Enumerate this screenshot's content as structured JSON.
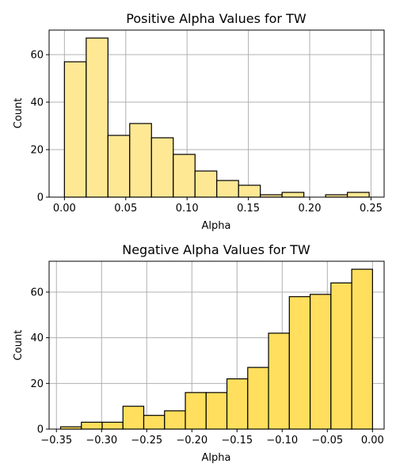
{
  "chart_data": [
    {
      "type": "bar",
      "title": "Positive Alpha Values for TW",
      "xlabel": "Alpha",
      "ylabel": "Count",
      "bar_color": "#ffe894",
      "grid": true,
      "xlim": [
        -0.0125,
        0.2607
      ],
      "ylim": [
        0,
        70.35
      ],
      "x_ticks": [
        0.0,
        0.05,
        0.1,
        0.15,
        0.2,
        0.25
      ],
      "x_tick_labels": [
        "0.00",
        "0.05",
        "0.10",
        "0.15",
        "0.20",
        "0.25"
      ],
      "y_ticks": [
        0,
        20,
        40,
        60
      ],
      "y_tick_labels": [
        "0",
        "20",
        "40",
        "60"
      ],
      "bin_width": 0.01775,
      "bin_edges": [
        0.0,
        0.01775,
        0.0355,
        0.05325,
        0.071,
        0.08875,
        0.1065,
        0.12425,
        0.142,
        0.15975,
        0.1775,
        0.19525,
        0.213,
        0.23075
      ],
      "values": [
        57,
        67,
        26,
        31,
        25,
        18,
        11,
        7,
        5,
        1,
        2,
        0,
        1,
        2
      ]
    },
    {
      "type": "bar",
      "title": "Negative Alpha Values for TW",
      "xlabel": "Alpha",
      "ylabel": "Count",
      "bar_color": "#ffdf5d",
      "grid": true,
      "xlim": [
        -0.3581,
        0.0129
      ],
      "ylim": [
        0,
        73.5
      ],
      "x_ticks": [
        -0.35,
        -0.3,
        -0.25,
        -0.2,
        -0.15,
        -0.1,
        -0.05,
        0.0
      ],
      "x_tick_labels": [
        "−0.35",
        "−0.30",
        "−0.25",
        "−0.20",
        "−0.15",
        "−0.10",
        "−0.05",
        "0.00"
      ],
      "y_ticks": [
        0,
        20,
        40,
        60
      ],
      "y_tick_labels": [
        "0",
        "20",
        "40",
        "60"
      ],
      "bin_width": 0.02303,
      "bin_edges": [
        -0.3454,
        -0.32237,
        -0.29934,
        -0.27631,
        -0.25328,
        -0.23025,
        -0.20722,
        -0.18419,
        -0.16116,
        -0.13813,
        -0.1151,
        -0.09207,
        -0.06904,
        -0.04601,
        -0.02298
      ],
      "values": [
        1,
        3,
        3,
        10,
        6,
        8,
        16,
        16,
        22,
        27,
        42,
        58,
        59,
        64,
        70
      ]
    }
  ]
}
